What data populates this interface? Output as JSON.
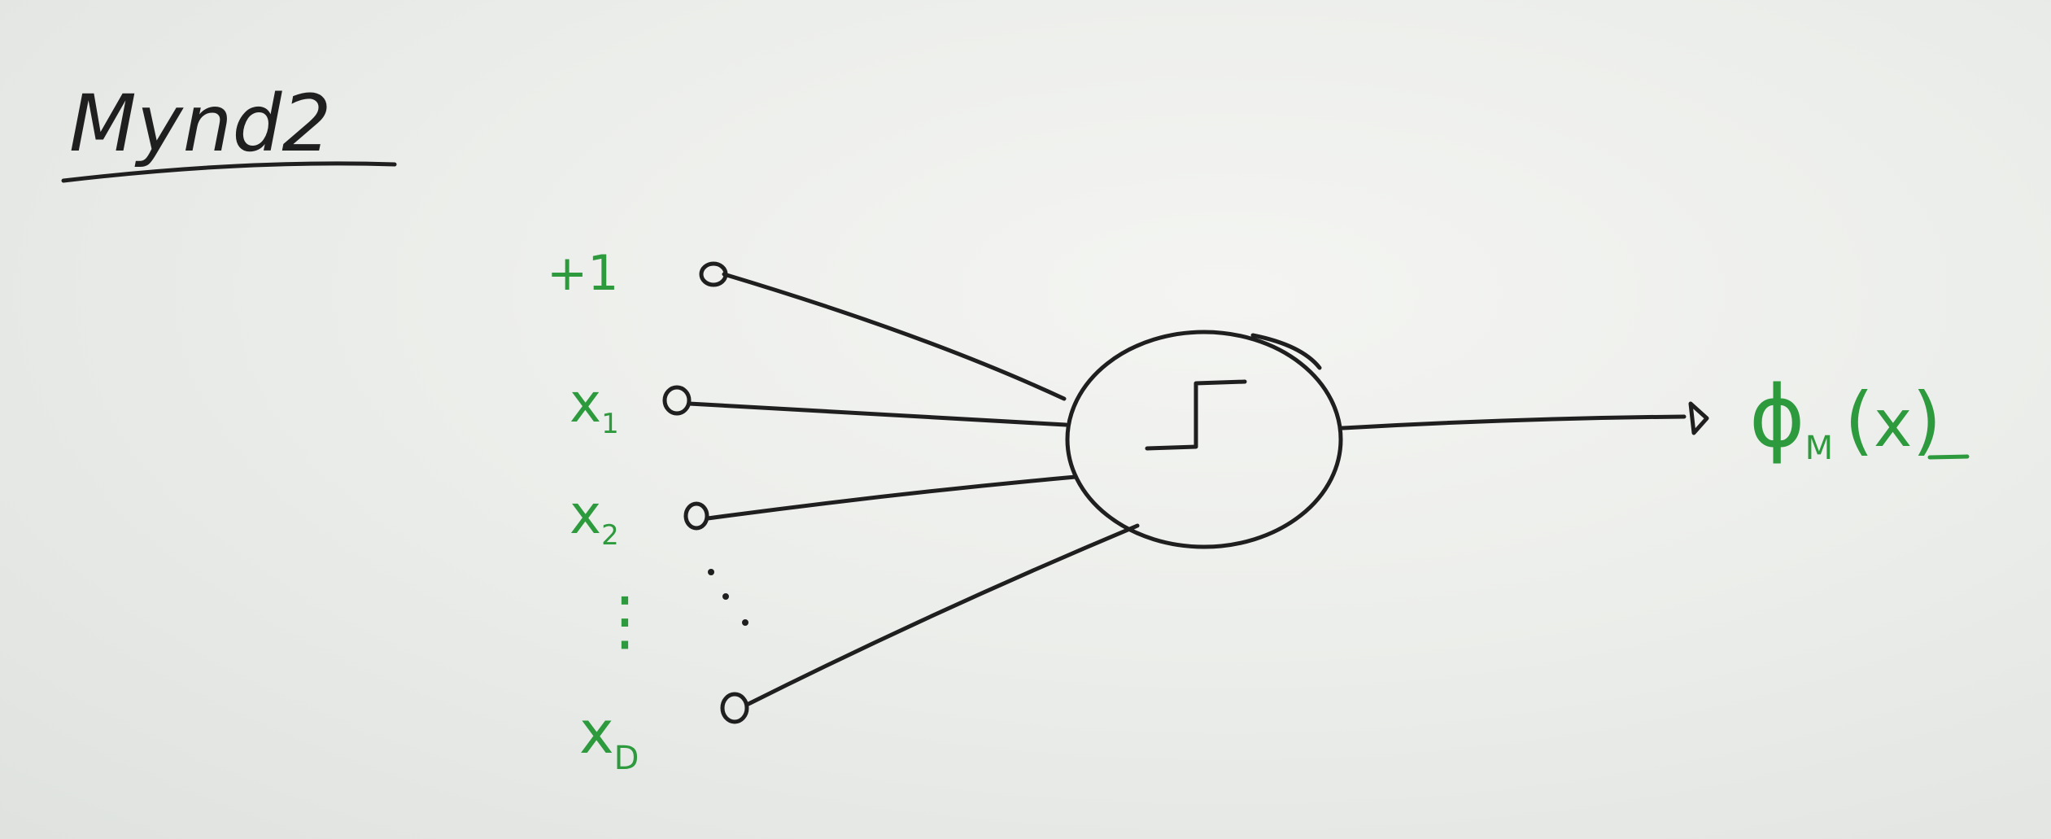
{
  "title": "Mynd2",
  "inputs": {
    "bias": "+1",
    "x1_base": "x",
    "x1_sub": "1",
    "x2_base": "x",
    "x2_sub": "2",
    "vdots": "⋮",
    "xD_base": "x",
    "xD_sub": "D"
  },
  "output": {
    "phi": "ϕ",
    "sub": "M",
    "open_paren": "(",
    "arg": "x",
    "close_paren": ")"
  },
  "colors": {
    "ink": "#1f1f1f",
    "green": "#2e9a3e",
    "paper": "#eceeeb"
  },
  "icons": {
    "neuron": "step-function-icon",
    "arrow": "arrow-head-icon"
  }
}
